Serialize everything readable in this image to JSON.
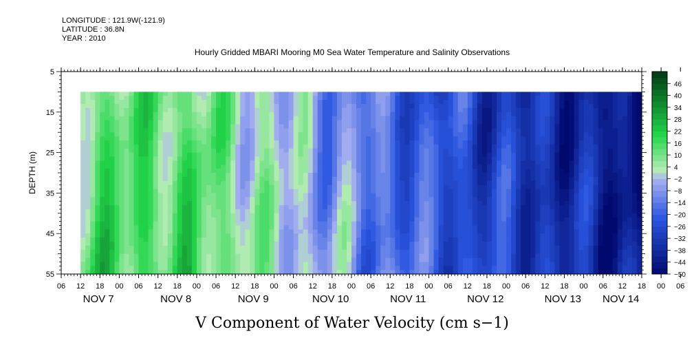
{
  "header": {
    "longitude": "LONGITUDE : 121.9W(-121.9)",
    "latitude": "LATITUDE : 36.8N",
    "year": "YEAR : 2010"
  },
  "chart_data": {
    "type": "heatmap",
    "title": "Hourly Gridded MBARI Mooring M0 Sea Water Temperature and Salinity Observations",
    "xlabel": "V Component of Water Velocity (cm s−1)",
    "ylabel": "DEPTH (m)",
    "y_ticks": [
      5,
      15,
      25,
      35,
      45,
      55
    ],
    "y_range": [
      5,
      55
    ],
    "data_depth_range": [
      10,
      55
    ],
    "x_range_hours": [
      0,
      180
    ],
    "data_start_hour": 6,
    "x_tick_labels": [
      "06",
      "12",
      "18",
      "00",
      "06",
      "12",
      "18",
      "00",
      "06",
      "12",
      "18",
      "00",
      "06",
      "12",
      "18",
      "00",
      "06",
      "12",
      "18",
      "00",
      "06",
      "12",
      "18",
      "00",
      "06",
      "12",
      "18",
      "00",
      "06",
      "12",
      "18",
      "00",
      "06"
    ],
    "date_labels": [
      {
        "label": "NOV  7",
        "hour": 6
      },
      {
        "label": "NOV  8",
        "hour": 30
      },
      {
        "label": "NOV  9",
        "hour": 54
      },
      {
        "label": "NOV 10",
        "hour": 78
      },
      {
        "label": "NOV 11",
        "hour": 102
      },
      {
        "label": "NOV 12",
        "hour": 126
      },
      {
        "label": "NOV 13",
        "hour": 150
      },
      {
        "label": "NOV 14",
        "hour": 168
      }
    ],
    "colorbar_labels": [
      46,
      40,
      34,
      28,
      22,
      16,
      10,
      4,
      -2,
      -8,
      -14,
      -20,
      -26,
      -32,
      -38,
      -44,
      -50
    ],
    "colorbar_range": [
      -50,
      52
    ],
    "colorbar_step": 3,
    "colors": {
      "very_negative": "#000a6e",
      "negative": "#2a55e0",
      "near_zero_neg": "#a8b2f0",
      "near_zero_pos": "#b8ecb8",
      "positive": "#22d64a",
      "very_positive": "#003a14"
    }
  }
}
